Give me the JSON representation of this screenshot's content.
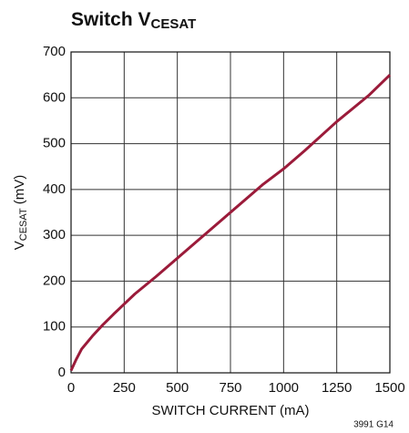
{
  "chart_data": {
    "type": "line",
    "title": [
      "Switch V",
      "CESAT"
    ],
    "xlabel": "SWITCH CURRENT (mA)",
    "ylabel": [
      "V",
      "CESAT",
      " (mV)"
    ],
    "annotation": "3991 G14",
    "x": [
      0,
      25,
      50,
      100,
      150,
      200,
      250,
      300,
      400,
      500,
      600,
      750,
      900,
      1000,
      1100,
      1250,
      1400,
      1500
    ],
    "values": [
      5,
      30,
      52,
      80,
      105,
      128,
      150,
      172,
      210,
      250,
      290,
      350,
      410,
      445,
      485,
      548,
      605,
      650
    ],
    "color": "#9b1b3a",
    "xlim": [
      0,
      1500
    ],
    "xticks": [
      0,
      250,
      500,
      750,
      1000,
      1250,
      1500
    ],
    "ylim": [
      0,
      700
    ],
    "yticks": [
      0,
      100,
      200,
      300,
      400,
      500,
      600,
      700
    ],
    "grid": true
  }
}
